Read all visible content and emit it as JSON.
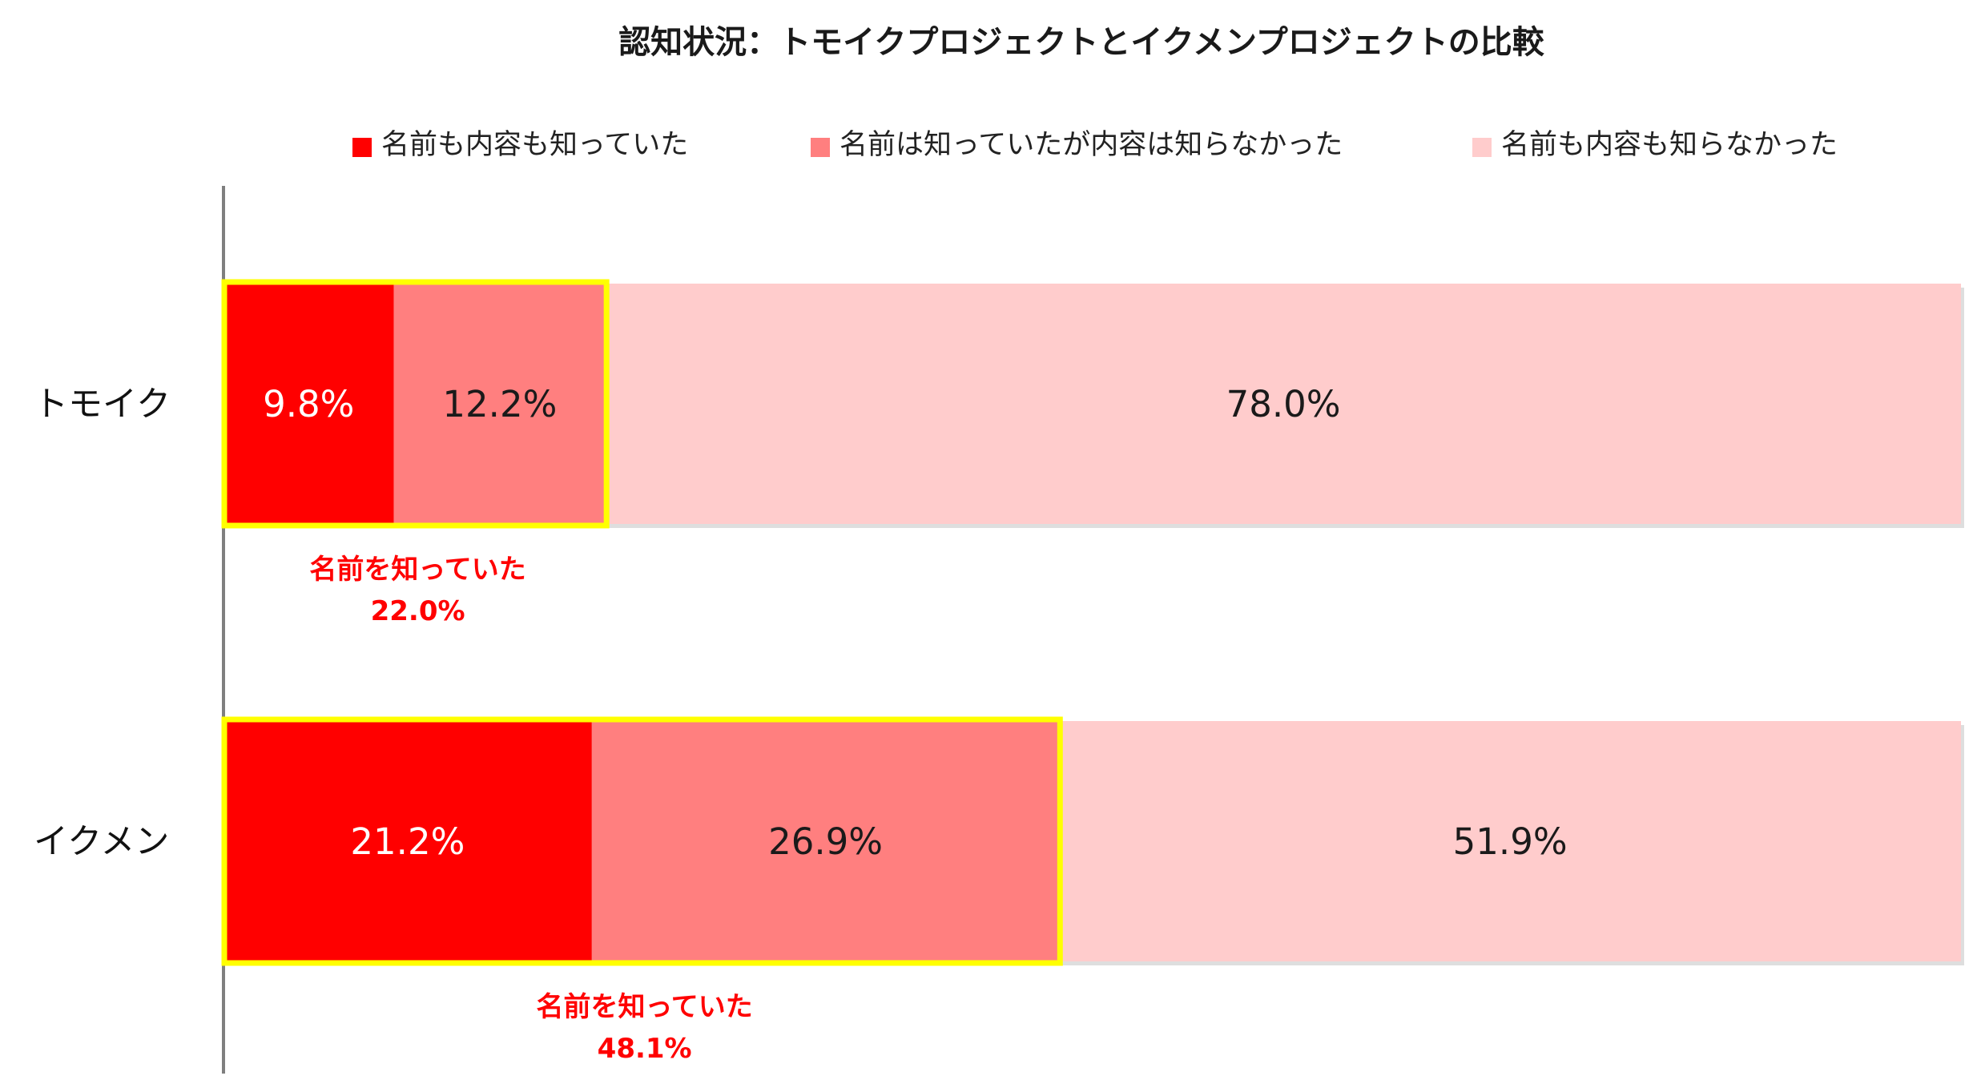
{
  "chart_data": {
    "type": "bar",
    "orientation": "horizontal",
    "stacked": true,
    "title": "認知状況：トモイクプロジェクトとイクメンプロジェクトの比較",
    "categories": [
      "トモイク",
      "イクメン"
    ],
    "series": [
      {
        "name": "名前も内容も知っていた",
        "color": "#ff0000",
        "label_color": "#ffffff",
        "values": [
          9.8,
          21.2
        ],
        "labels": [
          "9.8%",
          "21.2%"
        ]
      },
      {
        "name": "名前は知っていたが内容は知らなかった",
        "color": "#ff7f7f",
        "label_color": "#1a1a1a",
        "values": [
          12.2,
          26.9
        ],
        "labels": [
          "12.2%",
          "26.9%"
        ]
      },
      {
        "name": "名前も内容も知らなかった",
        "color": "#ffcccc",
        "label_color": "#1a1a1a",
        "values": [
          78.0,
          51.9
        ],
        "labels": [
          "78.0%",
          "51.9%"
        ]
      }
    ],
    "xlim": [
      0,
      100
    ],
    "legend_position": "top",
    "annotations": [
      {
        "category": "トモイク",
        "line1": "名前を知っていた",
        "line2": "22.0%",
        "value": 22.0,
        "highlight_color": "#ffff00"
      },
      {
        "category": "イクメン",
        "line1": "名前を知っていた",
        "line2": "48.1%",
        "value": 48.1,
        "highlight_color": "#ffff00"
      }
    ]
  }
}
